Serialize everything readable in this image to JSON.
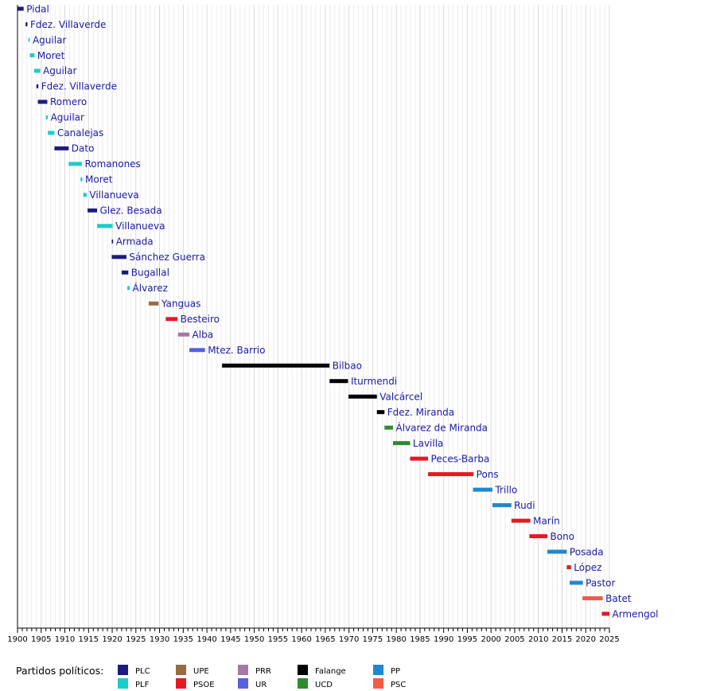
{
  "chart_data": {
    "type": "timeline",
    "title": "",
    "xlabel": "",
    "ylabel": "",
    "xlim": [
      1900,
      2025
    ],
    "x_ticks": [
      1900,
      1905,
      1910,
      1915,
      1920,
      1925,
      1930,
      1935,
      1940,
      1945,
      1950,
      1955,
      1960,
      1965,
      1970,
      1975,
      1980,
      1985,
      1990,
      1995,
      2000,
      2005,
      2010,
      2015,
      2020,
      2025
    ],
    "grid": "vertical yearly",
    "legend_title": "Partidos políticos:",
    "legend_placement": "bottom",
    "parties": [
      {
        "key": "PLC",
        "label": "PLC",
        "color": "#1c1c80"
      },
      {
        "key": "PLF",
        "label": "PLF",
        "color": "#1ccccc"
      },
      {
        "key": "UPE",
        "label": "UPE",
        "color": "#996b40"
      },
      {
        "key": "PSOE",
        "label": "PSOE",
        "color": "#e31a24"
      },
      {
        "key": "PRR",
        "label": "PRR",
        "color": "#a678a6"
      },
      {
        "key": "UR",
        "label": "UR",
        "color": "#5860e0"
      },
      {
        "key": "Falange",
        "label": "Falange",
        "color": "#000000"
      },
      {
        "key": "UCD",
        "label": "UCD",
        "color": "#2e8b2e"
      },
      {
        "key": "PP",
        "label": "PP",
        "color": "#1e88d0"
      },
      {
        "key": "PSC",
        "label": "PSC",
        "color": "#f55a45"
      }
    ],
    "entries": [
      {
        "name": "Pidal",
        "party": "PLC",
        "start": 1899.6,
        "end": 1901.3
      },
      {
        "name": "Fdez. Villaverde",
        "party": "PLC",
        "start": 1901.7,
        "end": 1902.1
      },
      {
        "name": "Aguilar",
        "party": "PLF",
        "start": 1902.3,
        "end": 1902.6
      },
      {
        "name": "Moret",
        "party": "PLF",
        "start": 1902.6,
        "end": 1903.6
      },
      {
        "name": "Aguilar",
        "party": "PLF",
        "start": 1903.5,
        "end": 1904.8
      },
      {
        "name": "Fdez. Villaverde",
        "party": "PLC",
        "start": 1904.0,
        "end": 1904.4
      },
      {
        "name": "Romero",
        "party": "PLC",
        "start": 1904.3,
        "end": 1906.3
      },
      {
        "name": "Aguilar",
        "party": "PLF",
        "start": 1906.0,
        "end": 1906.4
      },
      {
        "name": "Canalejas",
        "party": "PLF",
        "start": 1906.4,
        "end": 1907.8
      },
      {
        "name": "Dato",
        "party": "PLC",
        "start": 1907.8,
        "end": 1910.8
      },
      {
        "name": "Romanones",
        "party": "PLF",
        "start": 1910.8,
        "end": 1913.6
      },
      {
        "name": "Moret",
        "party": "PLF",
        "start": 1913.3,
        "end": 1913.7
      },
      {
        "name": "Villanueva",
        "party": "PLF",
        "start": 1913.9,
        "end": 1914.6
      },
      {
        "name": "Glez. Besada",
        "party": "PLC",
        "start": 1914.8,
        "end": 1916.8
      },
      {
        "name": "Villanueva",
        "party": "PLF",
        "start": 1916.8,
        "end": 1920.1
      },
      {
        "name": "Armada",
        "party": "PLC",
        "start": 1919.9,
        "end": 1920.2
      },
      {
        "name": "Sánchez Guerra",
        "party": "PLC",
        "start": 1919.9,
        "end": 1923.0
      },
      {
        "name": "Bugallal",
        "party": "PLC",
        "start": 1922.0,
        "end": 1923.4
      },
      {
        "name": "Álvarez",
        "party": "PLF",
        "start": 1923.2,
        "end": 1923.7
      },
      {
        "name": "Yanguas",
        "party": "UPE",
        "start": 1927.7,
        "end": 1929.8
      },
      {
        "name": "Besteiro",
        "party": "PSOE",
        "start": 1931.3,
        "end": 1933.8
      },
      {
        "name": "Alba",
        "party": "PRR",
        "start": 1933.9,
        "end": 1936.3
      },
      {
        "name": "Mtez. Barrio",
        "party": "UR",
        "start": 1936.3,
        "end": 1939.6
      },
      {
        "name": "Bilbao",
        "party": "Falange",
        "start": 1943.2,
        "end": 1965.9
      },
      {
        "name": "Iturmendi",
        "party": "Falange",
        "start": 1965.9,
        "end": 1969.8
      },
      {
        "name": "Valcárcel",
        "party": "Falange",
        "start": 1969.9,
        "end": 1975.9
      },
      {
        "name": "Fdez. Miranda",
        "party": "Falange",
        "start": 1975.9,
        "end": 1977.5
      },
      {
        "name": "Álvarez de Miranda",
        "party": "UCD",
        "start": 1977.5,
        "end": 1979.3
      },
      {
        "name": "Lavilla",
        "party": "UCD",
        "start": 1979.3,
        "end": 1982.9
      },
      {
        "name": "Peces-Barba",
        "party": "PSOE",
        "start": 1982.9,
        "end": 1986.7
      },
      {
        "name": "Pons",
        "party": "PSOE",
        "start": 1986.7,
        "end": 1996.3
      },
      {
        "name": "Trillo",
        "party": "PP",
        "start": 1996.2,
        "end": 2000.3
      },
      {
        "name": "Rudi",
        "party": "PP",
        "start": 2000.3,
        "end": 2004.3
      },
      {
        "name": "Marín",
        "party": "PSOE",
        "start": 2004.3,
        "end": 2008.3
      },
      {
        "name": "Bono",
        "party": "PSOE",
        "start": 2008.1,
        "end": 2011.9
      },
      {
        "name": "Posada",
        "party": "PP",
        "start": 2011.9,
        "end": 2016.0
      },
      {
        "name": "López",
        "party": "PSOE",
        "start": 2016.0,
        "end": 2016.9
      },
      {
        "name": "Pastor",
        "party": "PP",
        "start": 2016.6,
        "end": 2019.4
      },
      {
        "name": "Batet",
        "party": "PSC",
        "start": 2019.3,
        "end": 2023.6
      },
      {
        "name": "Armengol",
        "party": "PSOE",
        "start": 2023.4,
        "end": 2025.8
      }
    ]
  }
}
